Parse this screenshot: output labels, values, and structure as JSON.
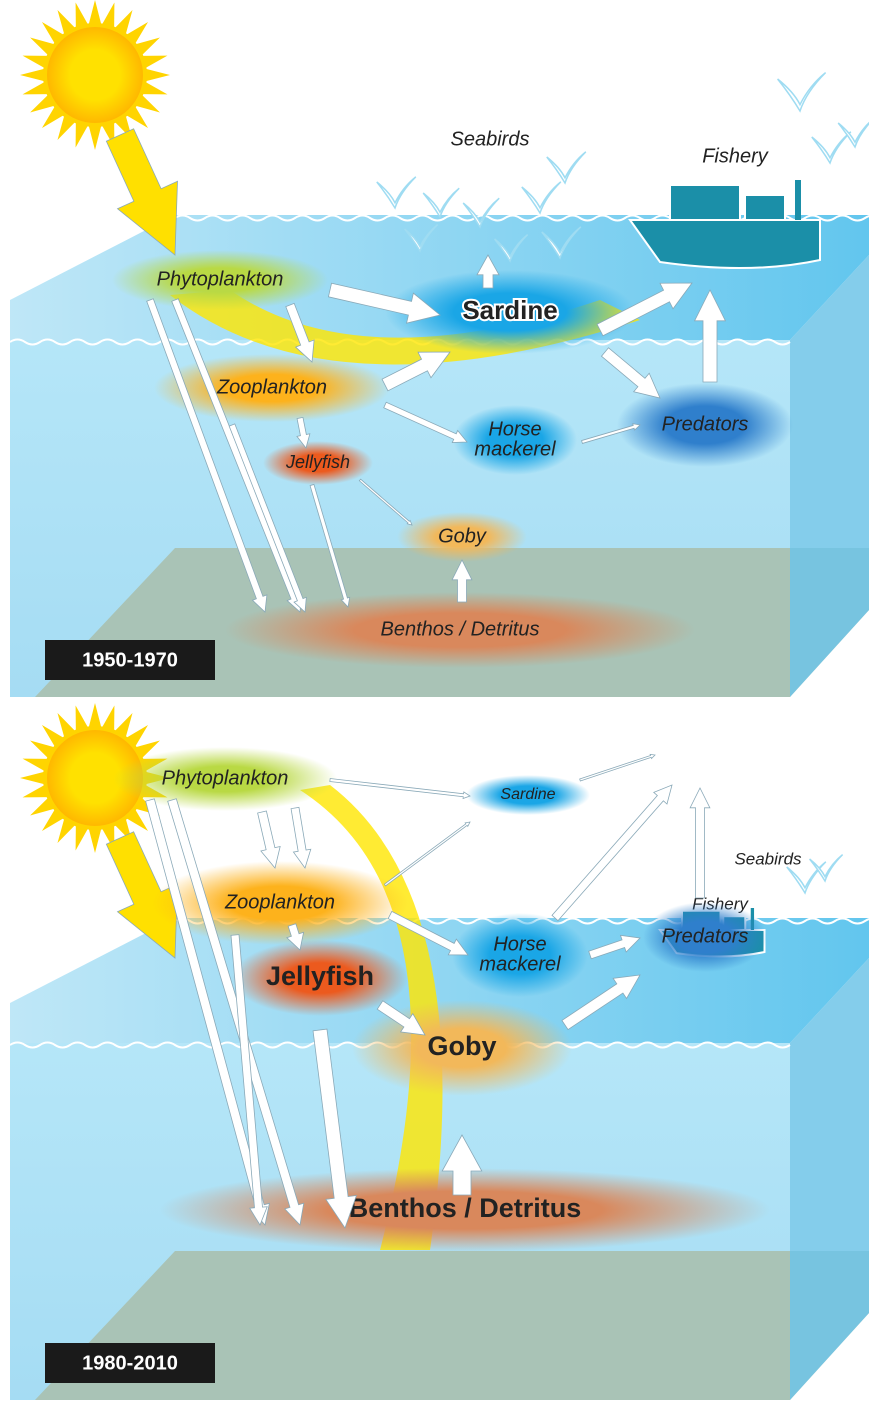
{
  "panels": [
    {
      "period": "1950-1970",
      "nodes": [
        {
          "lines": [
            "Seabirds"
          ]
        },
        {
          "lines": [
            "Fishery"
          ]
        },
        {
          "lines": [
            "Phytoplankton"
          ]
        },
        {
          "lines": [
            "Sardine"
          ]
        },
        {
          "lines": [
            "Zooplankton"
          ]
        },
        {
          "lines": [
            "Horse",
            "mackerel"
          ]
        },
        {
          "lines": [
            "Predators"
          ]
        },
        {
          "lines": [
            "Jellyfish"
          ]
        },
        {
          "lines": [
            "Goby"
          ]
        },
        {
          "lines": [
            "Benthos / Detritus"
          ]
        }
      ]
    },
    {
      "period": "1980-2010",
      "nodes": [
        {
          "lines": [
            "Seabirds"
          ]
        },
        {
          "lines": [
            "Fishery"
          ]
        },
        {
          "lines": [
            "Phytoplankton"
          ]
        },
        {
          "lines": [
            "Sardine"
          ]
        },
        {
          "lines": [
            "Zooplankton"
          ]
        },
        {
          "lines": [
            "Horse",
            "mackerel"
          ]
        },
        {
          "lines": [
            "Predators"
          ]
        },
        {
          "lines": [
            "Jellyfish"
          ]
        },
        {
          "lines": [
            "Goby"
          ]
        },
        {
          "lines": [
            "Benthos / Detritus"
          ]
        }
      ]
    }
  ]
}
